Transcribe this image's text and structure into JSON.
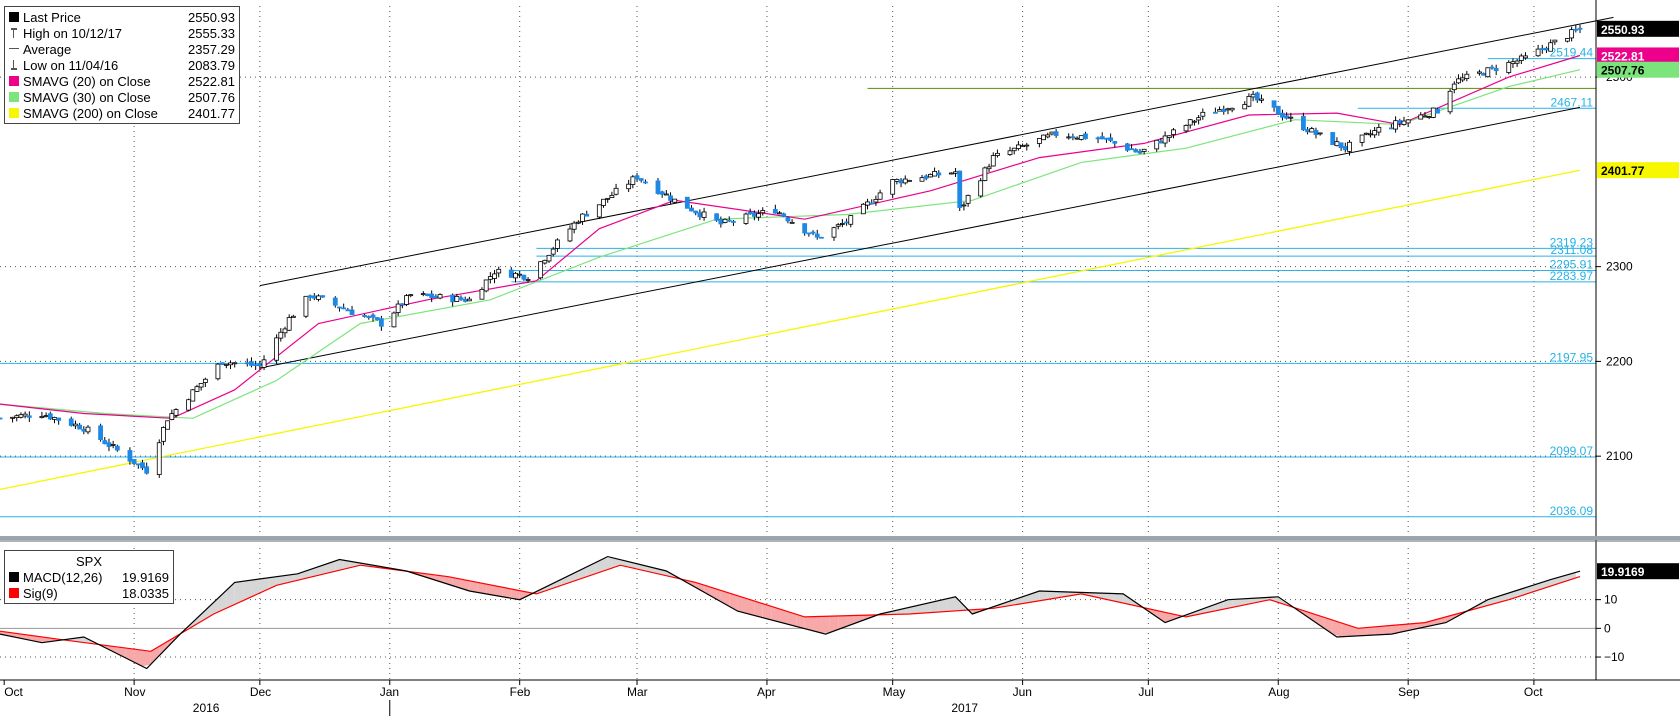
{
  "chart_data": [
    {
      "type": "candlestick",
      "instrument_label": "",
      "ylim": [
        2020,
        2575
      ],
      "y_ticks": [
        2100,
        2200,
        2300,
        2500
      ],
      "x_months": [
        "Oct",
        "Nov",
        "Dec",
        "Jan",
        "Feb",
        "Mar",
        "Apr",
        "May",
        "Jun",
        "Jul",
        "Aug",
        "Sep",
        "Oct"
      ],
      "x_years": [
        "2016",
        "2017"
      ],
      "legend": [
        {
          "label": "Last Price",
          "value": "2550.93",
          "color": "#000000",
          "marker": "square"
        },
        {
          "label": "High on 10/12/17",
          "value": "2555.33",
          "color": "#555555",
          "marker": "tee"
        },
        {
          "label": "Average",
          "value": "2357.29",
          "color": "#555555",
          "marker": "dash"
        },
        {
          "label": "Low on 11/04/16",
          "value": "2083.79",
          "color": "#555555",
          "marker": "tee-down"
        },
        {
          "label": "SMAVG (20) on Close",
          "value": "2522.81",
          "color": "#ec008c",
          "marker": "square"
        },
        {
          "label": "SMAVG (30) on Close",
          "value": "2507.76",
          "color": "#7be57b",
          "marker": "square"
        },
        {
          "label": "SMAVG (200) on Close",
          "value": "2401.77",
          "color": "#f7f700",
          "marker": "square"
        }
      ],
      "price_path": [
        {
          "date": "2016-09-30",
          "value": 2140
        },
        {
          "date": "2016-10-10",
          "value": 2145
        },
        {
          "date": "2016-10-20",
          "value": 2130
        },
        {
          "date": "2016-11-04",
          "value": 2085
        },
        {
          "date": "2016-11-09",
          "value": 2140
        },
        {
          "date": "2016-11-22",
          "value": 2200
        },
        {
          "date": "2016-12-01",
          "value": 2195
        },
        {
          "date": "2016-12-08",
          "value": 2245
        },
        {
          "date": "2016-12-13",
          "value": 2270
        },
        {
          "date": "2016-12-30",
          "value": 2240
        },
        {
          "date": "2017-01-06",
          "value": 2270
        },
        {
          "date": "2017-01-20",
          "value": 2265
        },
        {
          "date": "2017-01-26",
          "value": 2295
        },
        {
          "date": "2017-02-03",
          "value": 2290
        },
        {
          "date": "2017-02-15",
          "value": 2350
        },
        {
          "date": "2017-03-01",
          "value": 2395
        },
        {
          "date": "2017-03-10",
          "value": 2370
        },
        {
          "date": "2017-03-21",
          "value": 2345
        },
        {
          "date": "2017-04-03",
          "value": 2360
        },
        {
          "date": "2017-04-13",
          "value": 2330
        },
        {
          "date": "2017-04-21",
          "value": 2350
        },
        {
          "date": "2017-05-01",
          "value": 2390
        },
        {
          "date": "2017-05-16",
          "value": 2400
        },
        {
          "date": "2017-05-17",
          "value": 2360
        },
        {
          "date": "2017-05-25",
          "value": 2415
        },
        {
          "date": "2017-06-09",
          "value": 2440
        },
        {
          "date": "2017-06-20",
          "value": 2435
        },
        {
          "date": "2017-06-29",
          "value": 2420
        },
        {
          "date": "2017-07-14",
          "value": 2460
        },
        {
          "date": "2017-07-26",
          "value": 2478
        },
        {
          "date": "2017-08-10",
          "value": 2440
        },
        {
          "date": "2017-08-17",
          "value": 2425
        },
        {
          "date": "2017-08-25",
          "value": 2445
        },
        {
          "date": "2017-09-08",
          "value": 2465
        },
        {
          "date": "2017-09-12",
          "value": 2495
        },
        {
          "date": "2017-09-29",
          "value": 2520
        },
        {
          "date": "2017-10-12",
          "value": 2550.93
        }
      ],
      "sma20_path": [
        {
          "date": "2016-09-30",
          "value": 2155
        },
        {
          "date": "2016-10-20",
          "value": 2145
        },
        {
          "date": "2016-11-10",
          "value": 2140
        },
        {
          "date": "2016-11-25",
          "value": 2170
        },
        {
          "date": "2016-12-15",
          "value": 2240
        },
        {
          "date": "2017-01-10",
          "value": 2265
        },
        {
          "date": "2017-02-05",
          "value": 2285
        },
        {
          "date": "2017-02-20",
          "value": 2340
        },
        {
          "date": "2017-03-10",
          "value": 2370
        },
        {
          "date": "2017-04-10",
          "value": 2350
        },
        {
          "date": "2017-05-10",
          "value": 2380
        },
        {
          "date": "2017-06-05",
          "value": 2415
        },
        {
          "date": "2017-06-30",
          "value": 2430
        },
        {
          "date": "2017-07-25",
          "value": 2460
        },
        {
          "date": "2017-08-15",
          "value": 2462
        },
        {
          "date": "2017-08-30",
          "value": 2450
        },
        {
          "date": "2017-09-25",
          "value": 2500
        },
        {
          "date": "2017-10-12",
          "value": 2522.81
        }
      ],
      "sma30_path": [
        {
          "date": "2016-09-30",
          "value": 2155
        },
        {
          "date": "2016-10-25",
          "value": 2145
        },
        {
          "date": "2016-11-15",
          "value": 2140
        },
        {
          "date": "2016-12-05",
          "value": 2180
        },
        {
          "date": "2016-12-25",
          "value": 2240
        },
        {
          "date": "2017-01-25",
          "value": 2265
        },
        {
          "date": "2017-02-20",
          "value": 2310
        },
        {
          "date": "2017-03-20",
          "value": 2350
        },
        {
          "date": "2017-04-20",
          "value": 2355
        },
        {
          "date": "2017-05-20",
          "value": 2370
        },
        {
          "date": "2017-06-15",
          "value": 2410
        },
        {
          "date": "2017-07-10",
          "value": 2425
        },
        {
          "date": "2017-08-05",
          "value": 2455
        },
        {
          "date": "2017-08-30",
          "value": 2450
        },
        {
          "date": "2017-09-25",
          "value": 2490
        },
        {
          "date": "2017-10-12",
          "value": 2507.76
        }
      ],
      "sma200_path": [
        {
          "date": "2016-09-30",
          "value": 2065
        },
        {
          "date": "2017-10-12",
          "value": 2401.77
        }
      ],
      "channel": {
        "upper": [
          {
            "date": "2016-12-01",
            "value": 2280
          },
          {
            "date": "2017-10-20",
            "value": 2563
          }
        ],
        "lower": [
          {
            "date": "2016-12-01",
            "value": 2193
          },
          {
            "date": "2017-10-12",
            "value": 2468
          }
        ]
      },
      "resistance_line": {
        "value": 2488,
        "from": "2017-04-25",
        "color": "#6a9a1f"
      },
      "levels": [
        {
          "value": 2519.44,
          "label": "2519.44",
          "from": "2017-09-20"
        },
        {
          "value": 2467.11,
          "label": "2467.11",
          "from": "2017-08-20"
        },
        {
          "value": 2319.23,
          "label": "2319.23",
          "from": "2017-02-05"
        },
        {
          "value": 2311.08,
          "label": "2311.08",
          "from": "2017-02-05"
        },
        {
          "value": 2295.91,
          "label": "2295.91",
          "from": "2017-01-30"
        },
        {
          "value": 2283.97,
          "label": "2283.97",
          "from": "2017-01-30"
        },
        {
          "value": 2197.95,
          "label": "2197.95",
          "from": "2016-09-30"
        },
        {
          "value": 2099.07,
          "label": "2099.07",
          "from": "2016-09-30"
        },
        {
          "value": 2036.09,
          "label": "2036.09",
          "from": "2016-09-30"
        }
      ],
      "right_tags": [
        {
          "label": "2550.93",
          "value": 2550.93,
          "bg": "#000000",
          "fg": "#ffffff"
        },
        {
          "label": "2522.81",
          "value": 2522.81,
          "bg": "#ec008c",
          "fg": "#ffffff"
        },
        {
          "label": "2507.76",
          "value": 2507.76,
          "bg": "#7be57b",
          "fg": "#000000"
        },
        {
          "label": "2401.77",
          "value": 2401.77,
          "bg": "#f7f700",
          "fg": "#000000"
        }
      ]
    },
    {
      "type": "line",
      "title": "SPX",
      "ylim": [
        -18,
        28
      ],
      "y_ticks": [
        -10,
        0,
        10
      ],
      "legend": [
        {
          "label": "MACD(12,26)",
          "value": "19.9169",
          "color": "#000000"
        },
        {
          "label": "Sig(9)",
          "value": "18.0335",
          "color": "#ff0000"
        }
      ],
      "macd_path": [
        {
          "date": "2016-09-30",
          "value": -2
        },
        {
          "date": "2016-10-10",
          "value": -5
        },
        {
          "date": "2016-10-20",
          "value": -3
        },
        {
          "date": "2016-11-04",
          "value": -14
        },
        {
          "date": "2016-11-12",
          "value": -2
        },
        {
          "date": "2016-11-25",
          "value": 16
        },
        {
          "date": "2016-12-10",
          "value": 19
        },
        {
          "date": "2016-12-20",
          "value": 24
        },
        {
          "date": "2017-01-05",
          "value": 20
        },
        {
          "date": "2017-01-20",
          "value": 13
        },
        {
          "date": "2017-02-01",
          "value": 10
        },
        {
          "date": "2017-02-22",
          "value": 25
        },
        {
          "date": "2017-03-08",
          "value": 20
        },
        {
          "date": "2017-03-25",
          "value": 6
        },
        {
          "date": "2017-04-15",
          "value": -2
        },
        {
          "date": "2017-04-28",
          "value": 5
        },
        {
          "date": "2017-05-16",
          "value": 11
        },
        {
          "date": "2017-05-20",
          "value": 5
        },
        {
          "date": "2017-06-05",
          "value": 13
        },
        {
          "date": "2017-06-25",
          "value": 12
        },
        {
          "date": "2017-07-05",
          "value": 2
        },
        {
          "date": "2017-07-20",
          "value": 10
        },
        {
          "date": "2017-08-01",
          "value": 11
        },
        {
          "date": "2017-08-15",
          "value": -3
        },
        {
          "date": "2017-08-28",
          "value": -2
        },
        {
          "date": "2017-09-10",
          "value": 2
        },
        {
          "date": "2017-09-20",
          "value": 10
        },
        {
          "date": "2017-10-05",
          "value": 17
        },
        {
          "date": "2017-10-12",
          "value": 19.9169
        }
      ],
      "signal_path": [
        {
          "date": "2016-09-30",
          "value": -1
        },
        {
          "date": "2016-10-15",
          "value": -4
        },
        {
          "date": "2016-11-05",
          "value": -8
        },
        {
          "date": "2016-11-20",
          "value": 5
        },
        {
          "date": "2016-12-05",
          "value": 15
        },
        {
          "date": "2016-12-25",
          "value": 22
        },
        {
          "date": "2017-01-15",
          "value": 18
        },
        {
          "date": "2017-02-05",
          "value": 12
        },
        {
          "date": "2017-02-25",
          "value": 22
        },
        {
          "date": "2017-03-15",
          "value": 16
        },
        {
          "date": "2017-04-10",
          "value": 4
        },
        {
          "date": "2017-05-05",
          "value": 5
        },
        {
          "date": "2017-05-25",
          "value": 7
        },
        {
          "date": "2017-06-15",
          "value": 12
        },
        {
          "date": "2017-07-10",
          "value": 4
        },
        {
          "date": "2017-07-30",
          "value": 10
        },
        {
          "date": "2017-08-20",
          "value": 0
        },
        {
          "date": "2017-09-05",
          "value": 2
        },
        {
          "date": "2017-09-25",
          "value": 10
        },
        {
          "date": "2017-10-12",
          "value": 18.0335
        }
      ],
      "right_tag": {
        "label": "19.9169",
        "bg": "#000000",
        "fg": "#ffffff"
      }
    }
  ]
}
